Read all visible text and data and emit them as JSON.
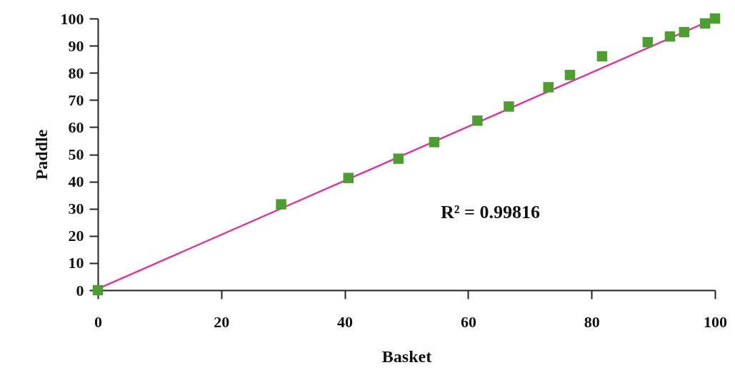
{
  "chart_data": {
    "type": "scatter",
    "xlabel": "Basket",
    "ylabel": "Paddle",
    "xlim": [
      0,
      100
    ],
    "ylim": [
      0,
      100
    ],
    "xticks": [
      0,
      20,
      40,
      60,
      80,
      100
    ],
    "yticks": [
      0,
      10,
      20,
      30,
      40,
      50,
      60,
      70,
      80,
      90,
      100
    ],
    "marker": "square",
    "annotations": [
      "R² = 0.99816"
    ],
    "series": [
      {
        "type": "line",
        "marker": "none",
        "color": "#d63a9c",
        "x": [
          0,
          100
        ],
        "values": [
          0.5,
          100
        ]
      },
      {
        "color": "#4c9e2f",
        "x": [
          0,
          29.7,
          40.6,
          48.7,
          54.5,
          61.5,
          66.6,
          73.0,
          76.5,
          81.7,
          89.1,
          92.7,
          95.0,
          98.4,
          100
        ],
        "values": [
          0,
          31.6,
          41.3,
          48.4,
          54.5,
          62.4,
          67.6,
          74.7,
          79.2,
          86.1,
          91.3,
          93.4,
          95.0,
          98.2,
          100
        ]
      }
    ]
  }
}
